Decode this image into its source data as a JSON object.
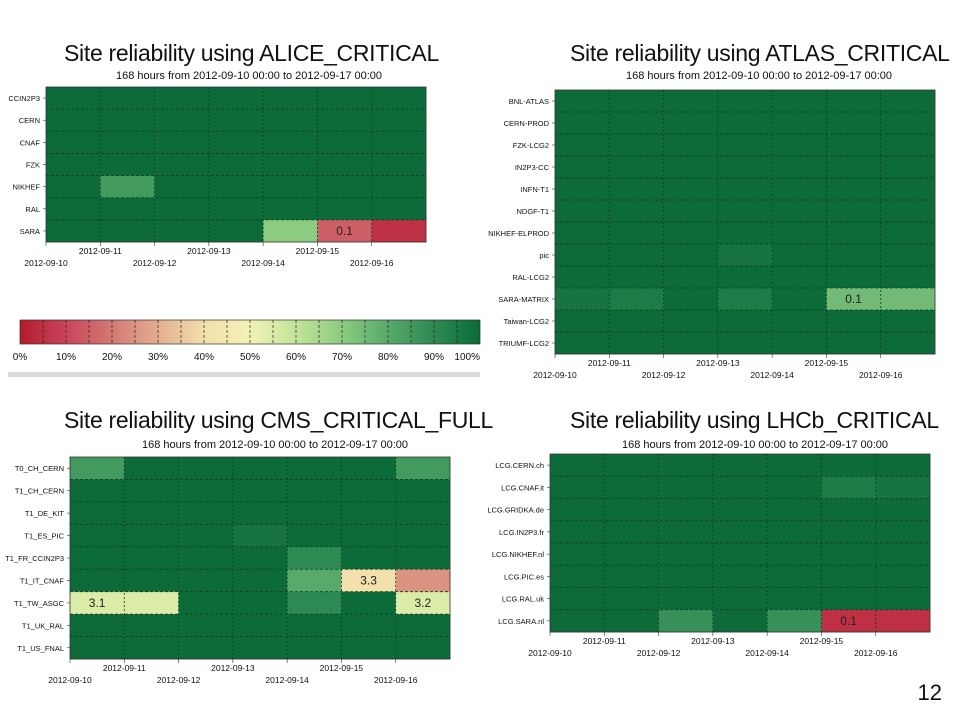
{
  "page_number": "12",
  "colors": {
    "grid_line": "#0d3d20"
  },
  "legend": {
    "ticks": [
      "0%",
      "10%",
      "20%",
      "30%",
      "40%",
      "50%",
      "60%",
      "70%",
      "80%",
      "90%",
      "100%"
    ],
    "colors": [
      "#b21c2b",
      "#c9445a",
      "#d27a73",
      "#e3ad8f",
      "#f3e0ac",
      "#f3f1b6",
      "#c3e49a",
      "#8ccb80",
      "#58a96a",
      "#2d8a52",
      "#0d6b3a"
    ]
  },
  "chart_data": [
    {
      "type": "heatmap",
      "title": "Site reliability using ALICE_CRITICAL",
      "subtitle": "168 hours from 2012-09-10 00:00 to 2012-09-17 00:00",
      "rows": [
        "CCIN2P3",
        "CERN",
        "CNAF",
        "FZK",
        "NIKHEF",
        "RAL",
        "SARA"
      ],
      "x_ticks_upper": [
        "2012-09-11",
        "2012-09-13",
        "2012-09-15"
      ],
      "x_ticks_lower": [
        "2012-09-10",
        "2012-09-12",
        "2012-09-14",
        "2012-09-16"
      ],
      "cells": [
        [
          1,
          1,
          1,
          1,
          1,
          1,
          1
        ],
        [
          1,
          1,
          1,
          1,
          1,
          1,
          1
        ],
        [
          1,
          1,
          1,
          1,
          1,
          1,
          1
        ],
        [
          1,
          1,
          1,
          1,
          1,
          1,
          1
        ],
        [
          1,
          0.85,
          1,
          1,
          1,
          1,
          1
        ],
        [
          1,
          1,
          1,
          1,
          1,
          1,
          1
        ],
        [
          1,
          1,
          1,
          1,
          0.7,
          0.15,
          0.05
        ]
      ],
      "annotations": [
        {
          "row": 6,
          "col": 5,
          "text": "0.1"
        }
      ]
    },
    {
      "type": "heatmap",
      "title": "Site reliability using ATLAS_CRITICAL",
      "subtitle": "168 hours from 2012-09-10 00:00 to 2012-09-17 00:00",
      "rows": [
        "BNL-ATLAS",
        "CERN-PROD",
        "FZK-LCG2",
        "IN2P3-CC",
        "INFN-T1",
        "NDGF-T1",
        "NIKHEF-ELPROD",
        "pic",
        "RAL-LCG2",
        "SARA-MATRIX",
        "Taiwan-LCG2",
        "TRIUMF-LCG2"
      ],
      "x_ticks_upper": [
        "2012-09-11",
        "2012-09-13",
        "2012-09-15"
      ],
      "x_ticks_lower": [
        "2012-09-10",
        "2012-09-12",
        "2012-09-14",
        "2012-09-16"
      ],
      "cells": [
        [
          1,
          1,
          1,
          1,
          1,
          1,
          1
        ],
        [
          1,
          1,
          1,
          1,
          1,
          1,
          1
        ],
        [
          1,
          1,
          1,
          1,
          1,
          1,
          1
        ],
        [
          1,
          1,
          1,
          1,
          1,
          1,
          1
        ],
        [
          1,
          1,
          1,
          1,
          1,
          1,
          1
        ],
        [
          1,
          1,
          1,
          1,
          1,
          1,
          1
        ],
        [
          1,
          1,
          1,
          1,
          1,
          1,
          1
        ],
        [
          1,
          1,
          1,
          0.97,
          1,
          1,
          1
        ],
        [
          1,
          1,
          1,
          1,
          1,
          1,
          1
        ],
        [
          0.97,
          0.95,
          1,
          0.95,
          1,
          0.75,
          0.75
        ],
        [
          1,
          1,
          1,
          1,
          1,
          1,
          1
        ],
        [
          1,
          1,
          1,
          1,
          1,
          1,
          1
        ]
      ],
      "annotations": [
        {
          "row": 9,
          "col": 5,
          "text": "0.1"
        }
      ]
    },
    {
      "type": "heatmap",
      "title": "Site reliability using CMS_CRITICAL_FULL",
      "subtitle": "168 hours from 2012-09-10 00:00 to 2012-09-17 00:00",
      "rows": [
        "T0_CH_CERN",
        "T1_CH_CERN",
        "T1_DE_KIT",
        "T1_ES_PIC",
        "T1_FR_CCIN2P3",
        "T1_IT_CNAF",
        "T1_TW_ASGC",
        "T1_UK_RAL",
        "T1_US_FNAL"
      ],
      "x_ticks_upper": [
        "2012-09-11",
        "2012-09-13",
        "2012-09-15"
      ],
      "x_ticks_lower": [
        "2012-09-10",
        "2012-09-12",
        "2012-09-14",
        "2012-09-16"
      ],
      "cells": [
        [
          0.85,
          1,
          1,
          1,
          1,
          1,
          0.85
        ],
        [
          1,
          1,
          1,
          1,
          1,
          1,
          1
        ],
        [
          1,
          1,
          1,
          1,
          1,
          1,
          1
        ],
        [
          1,
          1,
          1,
          0.97,
          1,
          1,
          1
        ],
        [
          1,
          1,
          1,
          1,
          0.9,
          1,
          1
        ],
        [
          1,
          1,
          1,
          1,
          0.8,
          0.4,
          0.25
        ],
        [
          0.55,
          0.55,
          1,
          1,
          0.9,
          1,
          0.55
        ],
        [
          1,
          1,
          1,
          1,
          1,
          1,
          1
        ],
        [
          1,
          1,
          1,
          1,
          1,
          1,
          1
        ]
      ],
      "annotations": [
        {
          "row": 5,
          "col": 5,
          "text": "3.3"
        },
        {
          "row": 6,
          "col": 0,
          "text": "3.1"
        },
        {
          "row": 6,
          "col": 6,
          "text": "3.2"
        }
      ]
    },
    {
      "type": "heatmap",
      "title": "Site reliability using LHCb_CRITICAL",
      "subtitle": "168 hours from 2012-09-10 00:00 to 2012-09-17 00:00",
      "rows": [
        "LCG.CERN.ch",
        "LCG.CNAF.it",
        "LCG.GRIDKA.de",
        "LCG.IN2P3.fr",
        "LCG.NIKHEF.nl",
        "LCG.PIC.es",
        "LCG.RAL.uk",
        "LCG.SARA.nl"
      ],
      "x_ticks_upper": [
        "2012-09-11",
        "2012-09-13",
        "2012-09-15"
      ],
      "x_ticks_lower": [
        "2012-09-10",
        "2012-09-12",
        "2012-09-14",
        "2012-09-16"
      ],
      "cells": [
        [
          1,
          1,
          1,
          1,
          1,
          1,
          1
        ],
        [
          1,
          1,
          1,
          1,
          1,
          0.95,
          0.97
        ],
        [
          1,
          1,
          1,
          1,
          1,
          1,
          1
        ],
        [
          1,
          1,
          1,
          1,
          1,
          1,
          1
        ],
        [
          1,
          1,
          1,
          1,
          1,
          1,
          1
        ],
        [
          1,
          1,
          1,
          1,
          1,
          1,
          1
        ],
        [
          1,
          1,
          1,
          1,
          1,
          1,
          1
        ],
        [
          1,
          1,
          0.88,
          1,
          0.88,
          0.05,
          0.05
        ]
      ],
      "annotations": [
        {
          "row": 7,
          "col": 5,
          "text": "0.1"
        }
      ]
    }
  ]
}
